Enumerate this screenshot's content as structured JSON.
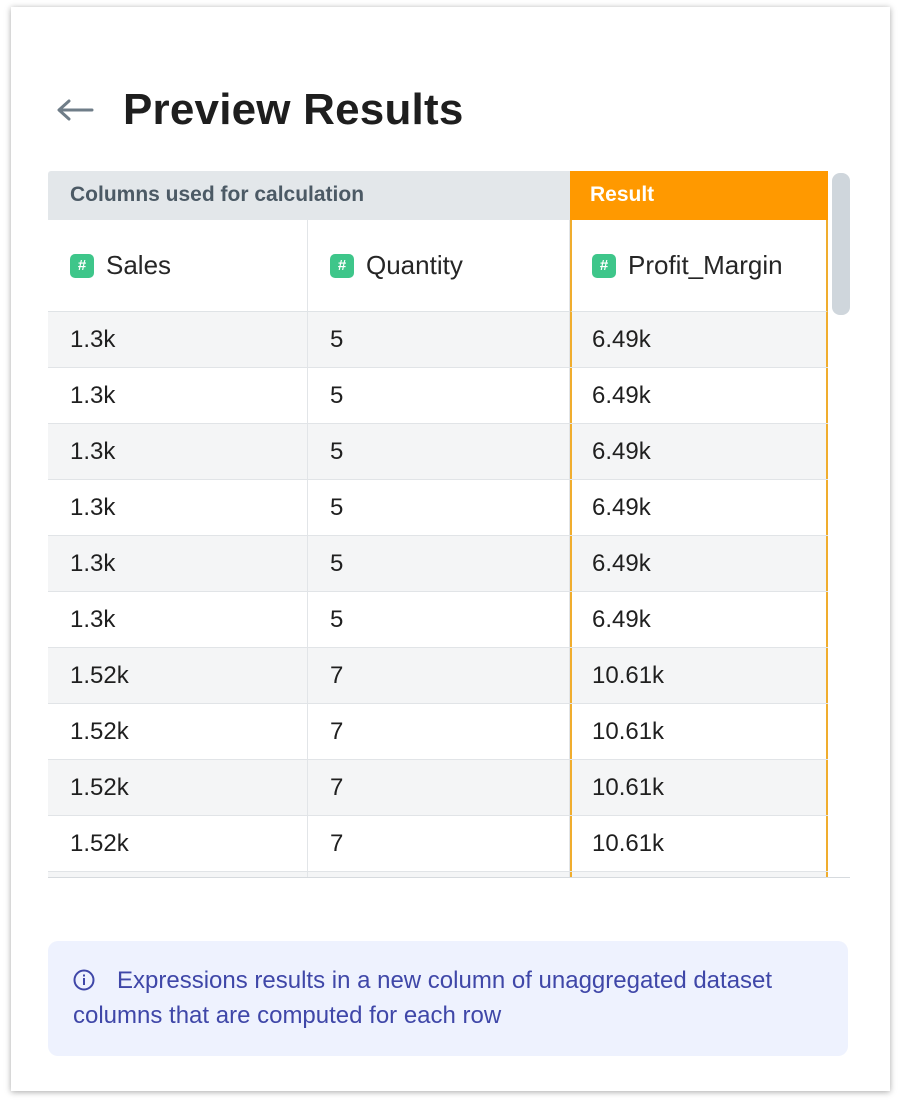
{
  "header": {
    "title": "Preview Results",
    "back_icon": "arrow-left-icon"
  },
  "table": {
    "group_headers": {
      "used": "Columns used for calculation",
      "result": "Result"
    },
    "columns": [
      {
        "name": "Sales",
        "type_badge": "#"
      },
      {
        "name": "Quantity",
        "type_badge": "#"
      },
      {
        "name": "Profit_Margin",
        "type_badge": "#"
      }
    ],
    "rows": [
      [
        "1.3k",
        "5",
        "6.49k"
      ],
      [
        "1.3k",
        "5",
        "6.49k"
      ],
      [
        "1.3k",
        "5",
        "6.49k"
      ],
      [
        "1.3k",
        "5",
        "6.49k"
      ],
      [
        "1.3k",
        "5",
        "6.49k"
      ],
      [
        "1.3k",
        "5",
        "6.49k"
      ],
      [
        "1.52k",
        "7",
        "10.61k"
      ],
      [
        "1.52k",
        "7",
        "10.61k"
      ],
      [
        "1.52k",
        "7",
        "10.61k"
      ],
      [
        "1.52k",
        "7",
        "10.61k"
      ]
    ]
  },
  "info": {
    "icon": "info-icon",
    "text": "Expressions results in a new column of unaggregated dataset columns that are computed for each row"
  },
  "colors": {
    "result_accent": "#ff9900",
    "badge": "#3ec68a",
    "info_text": "#3f47a8",
    "info_bg": "#eef2fe"
  }
}
